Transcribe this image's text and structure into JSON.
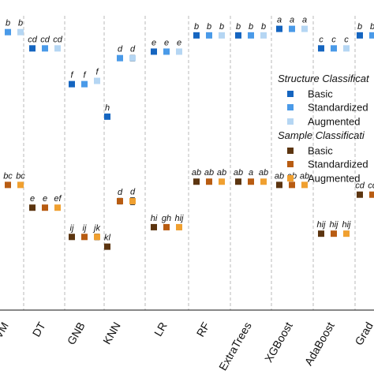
{
  "chart_data": {
    "type": "scatter",
    "categories": [
      "SVM",
      "DT",
      "GNB",
      "KNN",
      "LR",
      "RF",
      "ExtraTrees",
      "XGBoost",
      "AdaBoost",
      "GradientBoosting"
    ],
    "visible_category_labels": [
      "SVM",
      "DT",
      "GNB",
      "KNN",
      "LR",
      "RF",
      "ExtraTrees",
      "XGBoost",
      "AdaBoost",
      "Grad"
    ],
    "legend": [
      {
        "title": "Structure Classification",
        "title_visible": "Structure Classificat",
        "entries": [
          {
            "label": "Basic",
            "color": "#1565c0"
          },
          {
            "label": "Standardized",
            "label_visible": "Standardized",
            "color": "#4a9ae8"
          },
          {
            "label": "Augmented",
            "color": "#b5d6f3"
          }
        ]
      },
      {
        "title": "Sample Classification",
        "title_visible": "Sample Classificati",
        "entries": [
          {
            "label": "Basic",
            "color": "#5c3510"
          },
          {
            "label": "Standardized",
            "label_visible": "Standardized",
            "color": "#b85c12"
          },
          {
            "label": "Augmented",
            "color": "#f0a030"
          }
        ]
      }
    ],
    "y_scale": "hidden",
    "series": [
      {
        "name": "Structure Classification - Basic",
        "color": "#1565c0",
        "values": [
          0.94,
          0.89,
          0.78,
          0.68,
          0.88,
          0.93,
          0.93,
          0.95,
          0.89,
          0.93
        ],
        "errors": [
          0.004,
          0.004,
          0.004,
          0.004,
          0.004,
          0.004,
          0.004,
          0.004,
          0.004,
          0.004
        ],
        "letters": [
          "b",
          "cd",
          "f",
          "h",
          "e",
          "b",
          "b",
          "a",
          "c",
          "b"
        ]
      },
      {
        "name": "Structure Classification - Standardized",
        "color": "#4a9ae8",
        "values": [
          0.94,
          0.89,
          0.78,
          0.86,
          0.88,
          0.93,
          0.93,
          0.95,
          0.89,
          0.93
        ],
        "errors": [
          0.004,
          0.005,
          0.005,
          0.006,
          0.004,
          0.005,
          0.005,
          0.004,
          0.004,
          0.004
        ],
        "letters": [
          "b",
          "cd",
          "f",
          "d",
          "e",
          "b",
          "b",
          "a",
          "c",
          "b"
        ]
      },
      {
        "name": "Structure Classification - Augmented",
        "color": "#b5d6f3",
        "values": [
          0.94,
          0.89,
          0.79,
          0.86,
          0.88,
          0.93,
          0.93,
          0.95,
          0.89,
          0.93
        ],
        "errors": [
          0.005,
          0.006,
          0.007,
          0.009,
          0.006,
          0.006,
          0.006,
          0.005,
          0.006,
          0.005
        ],
        "letters": [
          "b",
          "cd",
          "f",
          "d",
          "e",
          "b",
          "b",
          "a",
          "c",
          "b"
        ]
      },
      {
        "name": "Sample Classification - Basic",
        "color": "#5c3510",
        "values": [
          0.47,
          0.4,
          0.31,
          0.28,
          0.34,
          0.48,
          0.48,
          0.47,
          0.32,
          0.44
        ],
        "errors": [
          0.005,
          0.006,
          0.008,
          0.008,
          0.006,
          0.005,
          0.006,
          0.006,
          0.007,
          0.005
        ],
        "letters": [
          "bc",
          "e",
          "ij",
          "kl",
          "hi",
          "ab",
          "ab",
          "ab",
          "hij",
          "cd"
        ]
      },
      {
        "name": "Sample Classification - Standardized",
        "color": "#b85c12",
        "values": [
          0.47,
          0.4,
          0.31,
          0.42,
          0.34,
          0.48,
          0.48,
          0.47,
          0.32,
          0.44
        ],
        "errors": [
          0.005,
          0.006,
          0.008,
          0.009,
          0.006,
          0.005,
          0.006,
          0.006,
          0.007,
          0.005
        ],
        "letters": [
          "bc",
          "e",
          "ij",
          "d",
          "gh",
          "ab",
          "a",
          "ab",
          "hij",
          "cd"
        ]
      },
      {
        "name": "Sample Classification - Augmented",
        "color": "#f0a030",
        "values": [
          0.47,
          0.4,
          0.31,
          0.42,
          0.34,
          0.48,
          0.48,
          0.47,
          0.32,
          0.44
        ],
        "errors": [
          0.006,
          0.007,
          0.009,
          0.011,
          0.008,
          0.006,
          0.007,
          0.007,
          0.008,
          0.006
        ],
        "letters": [
          "bc",
          "ef",
          "jk",
          "d",
          "hij",
          "ab",
          "ab",
          "ab",
          "hij",
          "cd"
        ]
      }
    ],
    "grid": "vertical dashed separators between categories",
    "legend_position": "right, overlapping plot (clipped)"
  }
}
